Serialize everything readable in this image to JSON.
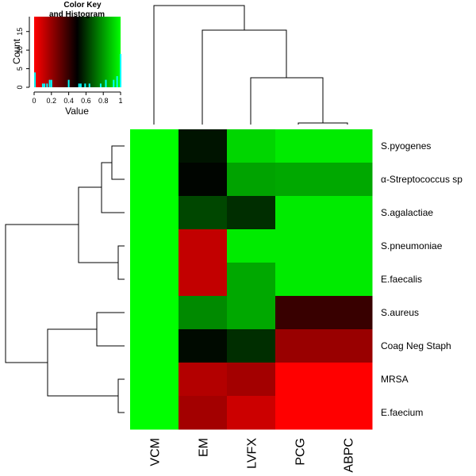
{
  "chart_data": [
    {
      "type": "heatmap",
      "title": "",
      "columns": [
        "VCM",
        "EM",
        "LVFX",
        "PCG",
        "ABPC"
      ],
      "rows": [
        "S.pyogenes",
        "α-Streptococcus sp",
        "S.agalactiae",
        "S.pneumoniae",
        "E.faecalis",
        "S.aureus",
        "Coag Neg Staph",
        "MRSA",
        "E.faecium"
      ],
      "values": [
        [
          1.0,
          0.54,
          0.92,
          0.96,
          0.96
        ],
        [
          1.0,
          0.51,
          0.82,
          0.83,
          0.83
        ],
        [
          1.0,
          0.64,
          0.59,
          0.96,
          0.96
        ],
        [
          1.0,
          0.12,
          0.96,
          0.96,
          0.96
        ],
        [
          1.0,
          0.12,
          0.83,
          0.96,
          0.96
        ],
        [
          1.0,
          0.77,
          0.83,
          0.39,
          0.39
        ],
        [
          1.0,
          0.52,
          0.59,
          0.2,
          0.2
        ],
        [
          1.0,
          0.15,
          0.18,
          0.0,
          0.0
        ],
        [
          1.0,
          0.18,
          0.1,
          0.0,
          0.0
        ]
      ],
      "color_scale": {
        "low": "#ff0000",
        "mid": "#000000",
        "high": "#00ff00"
      },
      "value_range": [
        0,
        1
      ],
      "row_dendrogram": "left",
      "column_dendrogram": "top"
    },
    {
      "type": "histogram",
      "title": "Color Key\nand Histogram",
      "xlabel": "Value",
      "ylabel": "Count",
      "xlim": [
        0,
        1
      ],
      "ylim": [
        0,
        19
      ],
      "x_ticks": [
        "0",
        "0.2",
        "0.4",
        "0.6",
        "0.8",
        "1"
      ],
      "y_ticks": [
        "0",
        "5",
        "10",
        "15"
      ],
      "bar_color": "#00ffff",
      "bins": [
        {
          "x": 0.01,
          "count": 4
        },
        {
          "x": 0.1,
          "count": 1
        },
        {
          "x": 0.12,
          "count": 1
        },
        {
          "x": 0.15,
          "count": 1
        },
        {
          "x": 0.18,
          "count": 2
        },
        {
          "x": 0.2,
          "count": 2
        },
        {
          "x": 0.4,
          "count": 2
        },
        {
          "x": 0.52,
          "count": 1
        },
        {
          "x": 0.54,
          "count": 1
        },
        {
          "x": 0.59,
          "count": 1
        },
        {
          "x": 0.64,
          "count": 1
        },
        {
          "x": 0.77,
          "count": 1
        },
        {
          "x": 0.83,
          "count": 2
        },
        {
          "x": 0.92,
          "count": 2
        },
        {
          "x": 0.96,
          "count": 3
        },
        {
          "x": 1.0,
          "count": 9
        }
      ]
    }
  ]
}
